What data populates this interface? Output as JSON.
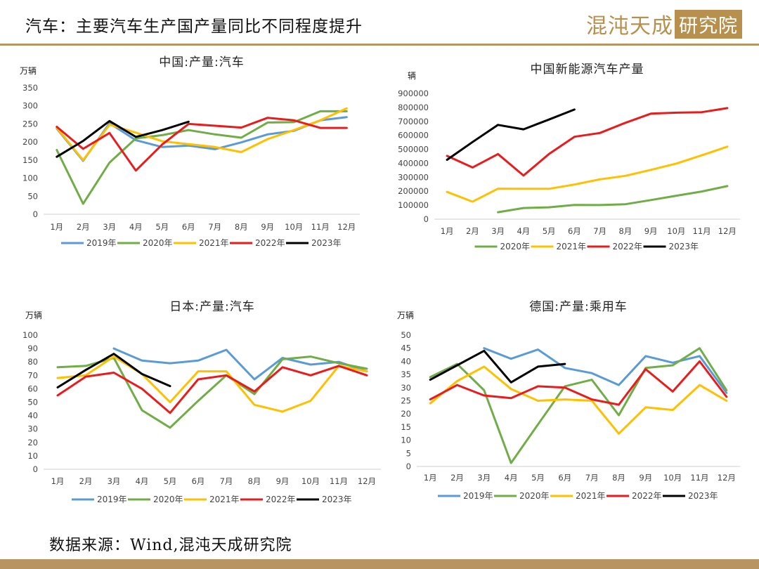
{
  "page": {
    "title": "汽车：主要汽车生产国产量同比不同程度提升",
    "logo_part1": "混沌天成",
    "logo_part2": "研究院",
    "source": "数据来源：Wind,混沌天成研究院"
  },
  "colors": {
    "2019年": "#5b9bd5",
    "2020年": "#70ad47",
    "2021年": "#ffc000",
    "2022年": "#e81c1c",
    "2023年": "#000000",
    "brand": "#b8904e"
  },
  "chart_data": [
    {
      "type": "line",
      "title": "中国:产量:汽车",
      "ylabel": "万辆",
      "categories": [
        "1月",
        "2月",
        "3月",
        "4月",
        "5月",
        "6月",
        "7月",
        "8月",
        "9月",
        "10月",
        "11月",
        "12月"
      ],
      "ylim": [
        0,
        350
      ],
      "yticks": [
        0,
        50,
        100,
        150,
        200,
        250,
        300,
        350
      ],
      "legend_position": "bottom",
      "series": [
        {
          "name": "2019年",
          "values": [
            237,
            148,
            252,
            205,
            186,
            190,
            180,
            199,
            221,
            231,
            260,
            269
          ]
        },
        {
          "name": "2020年",
          "values": [
            178,
            29,
            143,
            210,
            219,
            233,
            221,
            212,
            254,
            255,
            285,
            285
          ]
        },
        {
          "name": "2021年",
          "values": [
            239,
            150,
            248,
            226,
            202,
            194,
            186,
            172,
            208,
            233,
            260,
            293
          ]
        },
        {
          "name": "2022年",
          "values": [
            242,
            181,
            225,
            121,
            193,
            250,
            245,
            240,
            267,
            260,
            239,
            239
          ]
        },
        {
          "name": "2023年",
          "values": [
            159,
            203,
            258,
            214,
            233,
            256,
            null,
            null,
            null,
            null,
            null,
            null
          ]
        }
      ]
    },
    {
      "type": "line",
      "title": "中国新能源汽车产量",
      "ylabel": "辆",
      "categories": [
        "1月",
        "2月",
        "3月",
        "4月",
        "5月",
        "6月",
        "7月",
        "8月",
        "9月",
        "10月",
        "11月",
        "12月"
      ],
      "ylim": [
        0,
        900000
      ],
      "yticks": [
        0,
        100000,
        200000,
        300000,
        400000,
        500000,
        600000,
        700000,
        800000,
        900000
      ],
      "legend_position": "bottom",
      "series": [
        {
          "name": "2020年",
          "values": [
            null,
            null,
            50000,
            80000,
            85000,
            102000,
            101000,
            107000,
            137000,
            168000,
            198000,
            237000
          ]
        },
        {
          "name": "2021年",
          "values": [
            195000,
            125000,
            218000,
            217000,
            217000,
            248000,
            285000,
            310000,
            353000,
            398000,
            457000,
            519000
          ]
        },
        {
          "name": "2022年",
          "values": [
            453000,
            370000,
            466000,
            312000,
            466000,
            590000,
            617000,
            690000,
            755000,
            762000,
            766000,
            795000
          ]
        },
        {
          "name": "2023年",
          "values": [
            425000,
            552000,
            675000,
            643000,
            713000,
            785000,
            null,
            null,
            null,
            null,
            null,
            null
          ]
        }
      ]
    },
    {
      "type": "line",
      "title": "日本:产量:汽车",
      "ylabel": "万辆",
      "categories": [
        "1月",
        "2月",
        "3月",
        "4月",
        "5月",
        "6月",
        "7月",
        "8月",
        "9月",
        "10月",
        "11月",
        "12月"
      ],
      "ylim": [
        0,
        100
      ],
      "yticks": [
        0,
        10,
        20,
        30,
        40,
        50,
        60,
        70,
        80,
        90,
        100
      ],
      "legend_position": "bottom",
      "series": [
        {
          "name": "2019年",
          "values": [
            null,
            null,
            90,
            81,
            79,
            81,
            89,
            67,
            83,
            78,
            80,
            73
          ]
        },
        {
          "name": "2020年",
          "values": [
            76,
            77,
            83,
            44,
            31,
            51,
            70,
            56,
            82,
            84,
            79,
            75
          ]
        },
        {
          "name": "2021年",
          "values": [
            68,
            70,
            84,
            71,
            50,
            73,
            73,
            48,
            43,
            51,
            77,
            73
          ]
        },
        {
          "name": "2022年",
          "values": [
            55,
            69,
            72,
            60,
            42,
            67,
            70,
            58,
            76,
            70,
            77,
            70
          ]
        },
        {
          "name": "2023年",
          "values": [
            61,
            74,
            86,
            71,
            62,
            null,
            null,
            null,
            null,
            null,
            null,
            null
          ]
        }
      ]
    },
    {
      "type": "line",
      "title": "德国:产量:乘用车",
      "ylabel": "万辆",
      "categories": [
        "1月",
        "2月",
        "3月",
        "4月",
        "5月",
        "6月",
        "7月",
        "8月",
        "9月",
        "10月",
        "11月",
        "12月"
      ],
      "ylim": [
        0,
        50
      ],
      "yticks": [
        0,
        5,
        10,
        15,
        20,
        25,
        30,
        35,
        40,
        45,
        50
      ],
      "legend_position": "bottom",
      "series": [
        {
          "name": "2019年",
          "values": [
            null,
            null,
            45,
            41,
            44.5,
            37.5,
            35.5,
            31,
            42,
            39.5,
            42,
            28
          ]
        },
        {
          "name": "2020年",
          "values": [
            34,
            39,
            29,
            1.3,
            16,
            30.5,
            33,
            19.5,
            37.5,
            38.5,
            45,
            29
          ]
        },
        {
          "name": "2021年",
          "values": [
            24,
            32.5,
            38,
            29.5,
            25,
            25.5,
            25,
            12.5,
            22.5,
            21.5,
            31,
            25
          ]
        },
        {
          "name": "2022年",
          "values": [
            25.5,
            31,
            27,
            26,
            30.5,
            30,
            25.5,
            23.5,
            37,
            28.5,
            40,
            26.5
          ]
        },
        {
          "name": "2023年",
          "values": [
            33,
            38.5,
            44,
            32,
            38,
            39,
            null,
            null,
            null,
            null,
            null,
            null
          ]
        }
      ]
    }
  ]
}
